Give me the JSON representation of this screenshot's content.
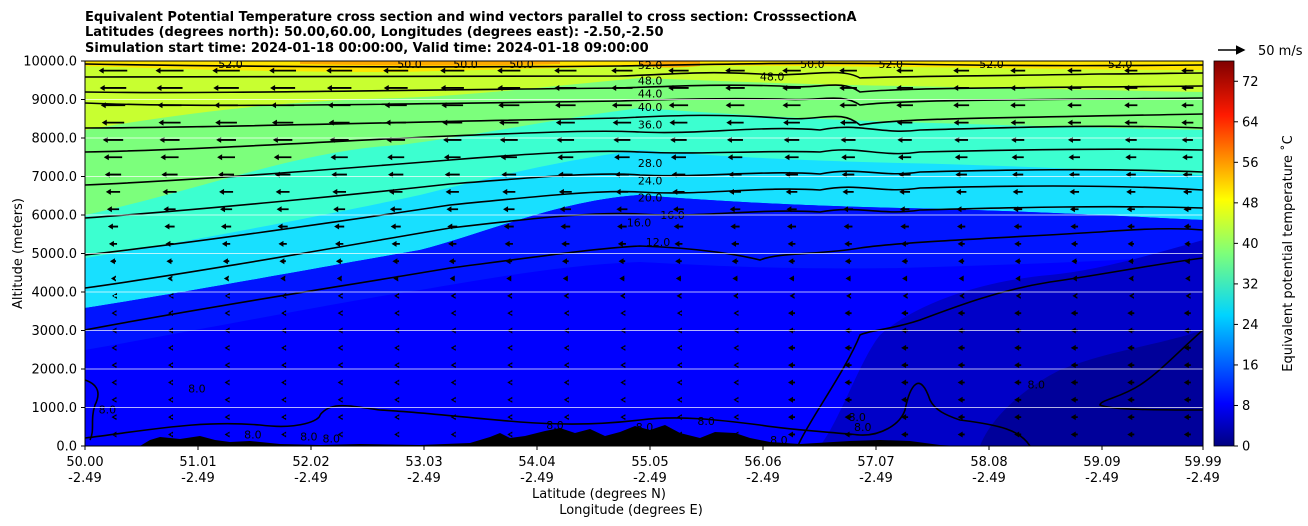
{
  "chart_data": {
    "type": "heatmap",
    "title_lines": [
      "Equivalent Potential Temperature cross section and wind vectors parallel to cross section: CrosssectionA",
      "Latitudes (degrees north): 50.00,60.00, Longitudes (degrees east): -2.50,-2.50",
      "Simulation start time: 2024-01-18 00:00:00, Valid time: 2024-01-18 09:00:00"
    ],
    "xlabel_1": "Latitude (degrees N)",
    "xlabel_2": "Longitude (degrees E)",
    "ylabel": "Altitude (meters)",
    "colorbar_label": "Equivalent potential temperature $^\\circ$C",
    "colorbar_label_display": "Equivalent potential temperature ˚C",
    "x_ticks_lat": [
      "50.00",
      "51.01",
      "52.02",
      "53.03",
      "54.04",
      "55.05",
      "56.06",
      "57.07",
      "58.08",
      "59.09",
      "59.99"
    ],
    "x_ticks_lon": [
      "-2.49",
      "-2.49",
      "-2.49",
      "-2.49",
      "-2.49",
      "-2.49",
      "-2.49",
      "-2.49",
      "-2.49",
      "-2.49",
      "-2.49"
    ],
    "y_ticks": [
      "0.0",
      "1000.0",
      "2000.0",
      "3000.0",
      "4000.0",
      "5000.0",
      "6000.0",
      "7000.0",
      "8000.0",
      "9000.0",
      "10000.0"
    ],
    "ylim": [
      0,
      10000
    ],
    "xlim": [
      50.0,
      59.99
    ],
    "colorbar_ticks": [
      "0",
      "8",
      "16",
      "24",
      "32",
      "40",
      "48",
      "56",
      "64",
      "72"
    ],
    "colorbar_range": [
      0,
      76
    ],
    "colormap": "jet",
    "quiver_key_label": "50 m/s",
    "quiver_key_speed": 50,
    "contour_labels": [
      {
        "text": "52.0",
        "lat": 55.05,
        "alt": 9900
      },
      {
        "text": "48.0",
        "lat": 55.05,
        "alt": 9500
      },
      {
        "text": "44.0",
        "lat": 55.05,
        "alt": 9150
      },
      {
        "text": "40.0",
        "lat": 55.05,
        "alt": 8800
      },
      {
        "text": "36.0",
        "lat": 55.05,
        "alt": 8350
      },
      {
        "text": "28.0",
        "lat": 55.05,
        "alt": 7350
      },
      {
        "text": "24.0",
        "lat": 55.05,
        "alt": 6900
      },
      {
        "text": "20.0",
        "lat": 55.05,
        "alt": 6450
      },
      {
        "text": "16.0",
        "lat": 54.95,
        "alt": 5800
      },
      {
        "text": "16.0",
        "lat": 55.25,
        "alt": 6000
      },
      {
        "text": "12.0",
        "lat": 55.12,
        "alt": 5300
      },
      {
        "text": "48.0",
        "lat": 56.14,
        "alt": 9600
      },
      {
        "text": "50.0",
        "lat": 56.5,
        "alt": 9920
      },
      {
        "text": "52.0",
        "lat": 57.2,
        "alt": 9920
      },
      {
        "text": "52.0",
        "lat": 58.1,
        "alt": 9920
      },
      {
        "text": "52.0",
        "lat": 59.25,
        "alt": 9920
      },
      {
        "text": "52.0",
        "lat": 51.3,
        "alt": 9920
      },
      {
        "text": "50.0",
        "lat": 52.9,
        "alt": 9920
      },
      {
        "text": "50.0",
        "lat": 53.4,
        "alt": 9920
      },
      {
        "text": "50.0",
        "lat": 53.9,
        "alt": 9920
      },
      {
        "text": "8.0",
        "lat": 50.2,
        "alt": 950
      },
      {
        "text": "8.0",
        "lat": 51.0,
        "alt": 1500
      },
      {
        "text": "8.0",
        "lat": 51.5,
        "alt": 300
      },
      {
        "text": "8.0",
        "lat": 52.0,
        "alt": 250
      },
      {
        "text": "8.0",
        "lat": 52.2,
        "alt": 200
      },
      {
        "text": "8.0",
        "lat": 54.2,
        "alt": 550
      },
      {
        "text": "8.0",
        "lat": 55.0,
        "alt": 500
      },
      {
        "text": "8.0",
        "lat": 55.55,
        "alt": 650
      },
      {
        "text": "8.0",
        "lat": 56.2,
        "alt": 150
      },
      {
        "text": "8.0",
        "lat": 56.9,
        "alt": 750
      },
      {
        "text": "8.0",
        "lat": 56.95,
        "alt": 500
      },
      {
        "text": "8.0",
        "lat": 58.5,
        "alt": 1600
      }
    ]
  }
}
